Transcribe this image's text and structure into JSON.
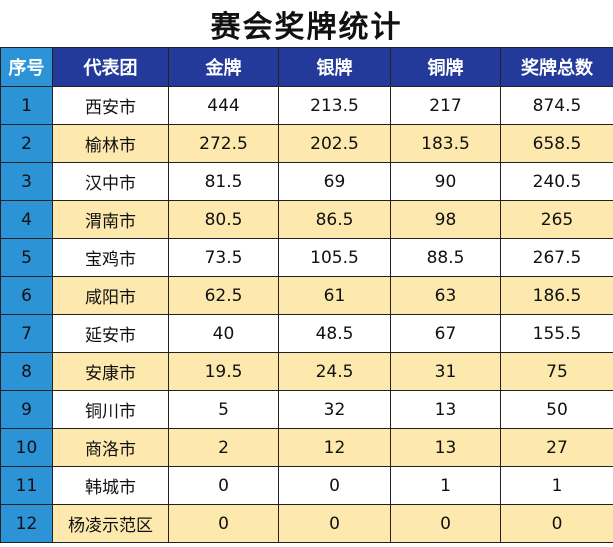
{
  "title": "赛会奖牌统计",
  "headers": [
    "序号",
    "代表团",
    "金牌",
    "银牌",
    "铜牌",
    "奖牌总数"
  ],
  "rows": [
    {
      "rank": "1",
      "team": "西安市",
      "gold": "444",
      "silver": "213.5",
      "bronze": "217",
      "total": "874.5"
    },
    {
      "rank": "2",
      "team": "榆林市",
      "gold": "272.5",
      "silver": "202.5",
      "bronze": "183.5",
      "total": "658.5"
    },
    {
      "rank": "3",
      "team": "汉中市",
      "gold": "81.5",
      "silver": "69",
      "bronze": "90",
      "total": "240.5"
    },
    {
      "rank": "4",
      "team": "渭南市",
      "gold": "80.5",
      "silver": "86.5",
      "bronze": "98",
      "total": "265"
    },
    {
      "rank": "5",
      "team": "宝鸡市",
      "gold": "73.5",
      "silver": "105.5",
      "bronze": "88.5",
      "total": "267.5"
    },
    {
      "rank": "6",
      "team": "咸阳市",
      "gold": "62.5",
      "silver": "61",
      "bronze": "63",
      "total": "186.5"
    },
    {
      "rank": "7",
      "team": "延安市",
      "gold": "40",
      "silver": "48.5",
      "bronze": "67",
      "total": "155.5"
    },
    {
      "rank": "8",
      "team": "安康市",
      "gold": "19.5",
      "silver": "24.5",
      "bronze": "31",
      "total": "75"
    },
    {
      "rank": "9",
      "team": "铜川市",
      "gold": "5",
      "silver": "32",
      "bronze": "13",
      "total": "50"
    },
    {
      "rank": "10",
      "team": "商洛市",
      "gold": "2",
      "silver": "12",
      "bronze": "13",
      "total": "27"
    },
    {
      "rank": "11",
      "team": "韩城市",
      "gold": "0",
      "silver": "0",
      "bronze": "1",
      "total": "1"
    },
    {
      "rank": "12",
      "team": "杨凌示范区",
      "gold": "0",
      "silver": "0",
      "bronze": "0",
      "total": "0"
    }
  ],
  "colors": {
    "header_bg": "#233a9a",
    "rank_bg": "#2c93d6",
    "stripe_bg": "#fde9ad"
  }
}
